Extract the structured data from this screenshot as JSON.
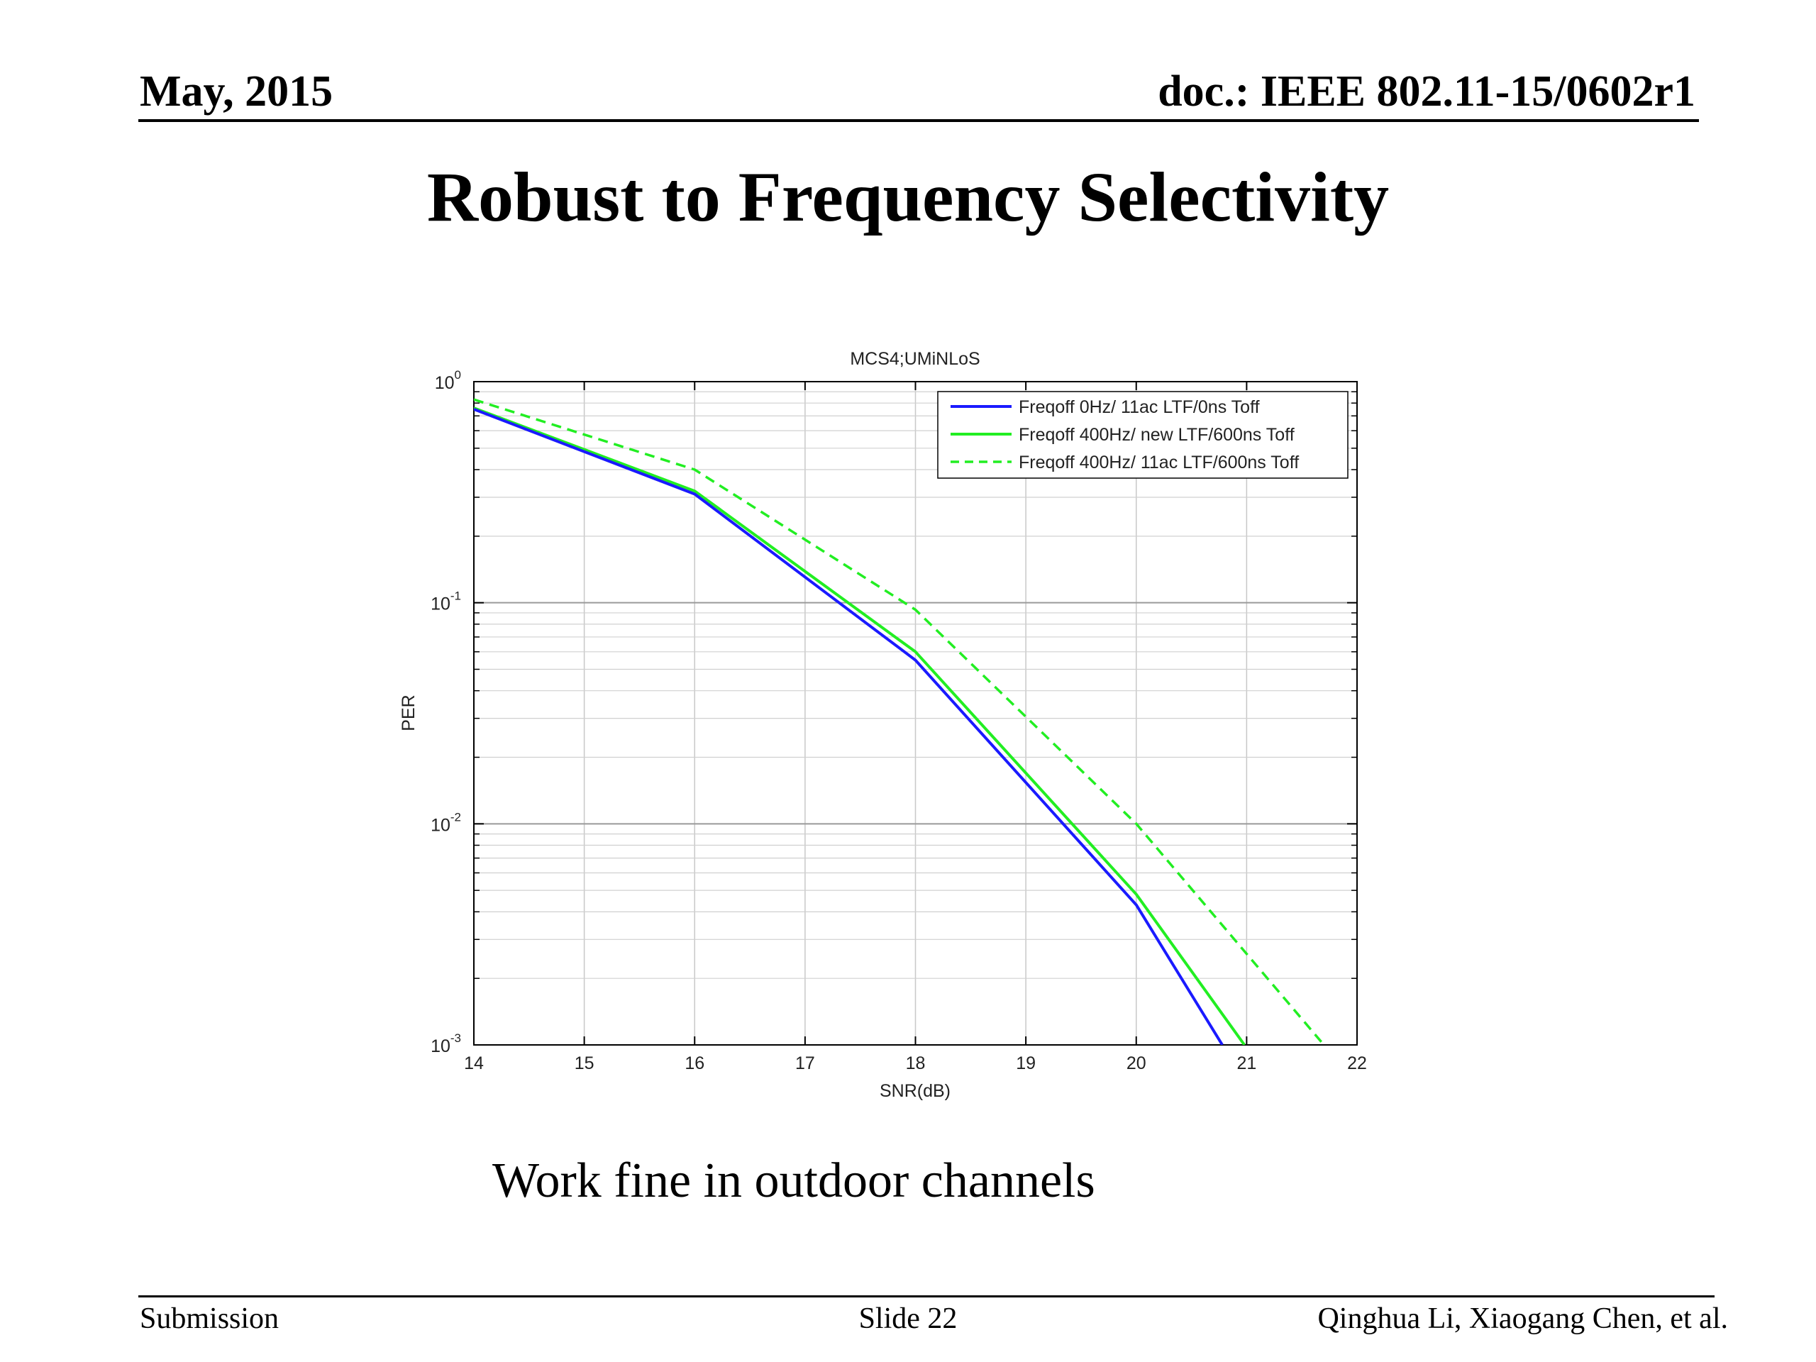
{
  "header": {
    "date": "May, 2015",
    "doc": "doc.: IEEE 802.11-15/0602r1"
  },
  "slide_title": "Robust to Frequency Selectivity",
  "caption": "Work fine in outdoor channels",
  "footer": {
    "left": "Submission",
    "center": "Slide 22",
    "right": "Qinghua Li, Xiaogang Chen, et al."
  },
  "colors": {
    "blue": "#1a1aff",
    "green": "#22ee22"
  },
  "chart_data": {
    "type": "line",
    "title": "MCS4;UMiNLoS",
    "xlabel": "SNR(dB)",
    "ylabel": "PER",
    "xlim": [
      14,
      22
    ],
    "ylim": [
      0.001,
      1
    ],
    "yscale": "log",
    "grid": true,
    "legend_position": "top-right",
    "x_ticks": [
      "14",
      "15",
      "16",
      "17",
      "18",
      "19",
      "20",
      "21",
      "22"
    ],
    "y_ticks": [
      {
        "base": "10",
        "exp": "0",
        "value": 1
      },
      {
        "base": "10",
        "exp": "-1",
        "value": 0.1
      },
      {
        "base": "10",
        "exp": "-2",
        "value": 0.01
      },
      {
        "base": "10",
        "exp": "-3",
        "value": 0.001
      }
    ],
    "series": [
      {
        "name": "Freqoff 0Hz/ 11ac LTF/0ns Toff",
        "color": "#1a1aff",
        "dash": "solid",
        "x": [
          14,
          16,
          18,
          20,
          20.78
        ],
        "y": [
          0.75,
          0.31,
          0.055,
          0.0043,
          0.001
        ]
      },
      {
        "name": "Freqoff 400Hz/ new LTF/600ns Toff",
        "color": "#22ee22",
        "dash": "solid",
        "x": [
          14,
          16,
          18,
          20,
          20.98
        ],
        "y": [
          0.76,
          0.32,
          0.06,
          0.0048,
          0.001
        ]
      },
      {
        "name": "Freqoff 400Hz/ 11ac LTF/600ns Toff",
        "color": "#22ee22",
        "dash": "dashed",
        "x": [
          14,
          16,
          18,
          20,
          21.7
        ],
        "y": [
          0.83,
          0.4,
          0.093,
          0.01,
          0.001
        ]
      }
    ]
  }
}
